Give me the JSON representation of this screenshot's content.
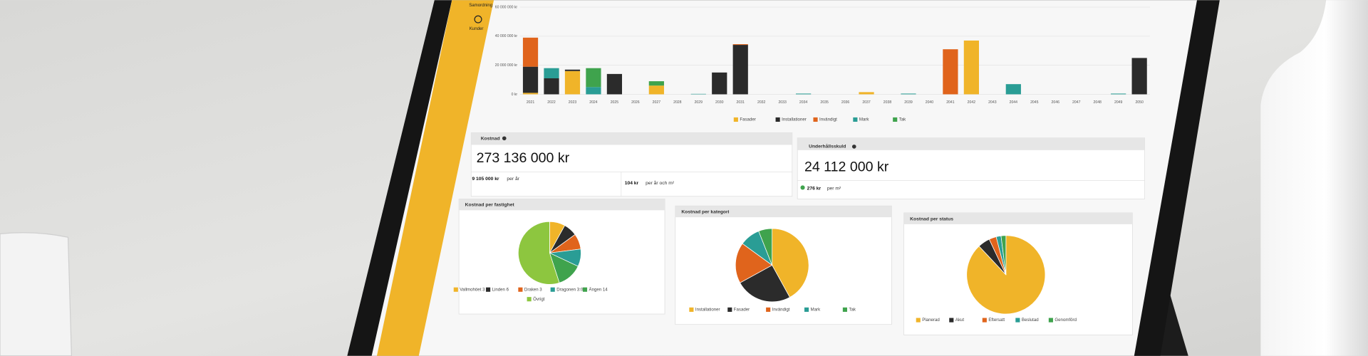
{
  "sidebar": {
    "items": [
      "Samordning",
      "Kunder"
    ]
  },
  "cards": [
    {
      "title": "Kostnad",
      "total": "273 136 000 kr",
      "stats": [
        {
          "value": "9 105 000 kr",
          "unit": "per år"
        },
        {
          "value": "104 kr",
          "unit": "per år och m²"
        }
      ]
    },
    {
      "title": "Underhållsskuld",
      "total": "24 112 000 kr",
      "stats": [
        {
          "value": "276 kr",
          "unit": "per m²"
        }
      ]
    }
  ],
  "chart_data": [
    {
      "type": "bar",
      "stacked": true,
      "categories": [
        "2021",
        "2022",
        "2023",
        "2024",
        "2025",
        "2026",
        "2027",
        "2028",
        "2029",
        "2030",
        "2031",
        "2032",
        "2033",
        "2034",
        "2035",
        "2036",
        "2037",
        "2038",
        "2039",
        "2040",
        "2041",
        "2042",
        "2043",
        "2044",
        "2045",
        "2046",
        "2047",
        "2048",
        "2049",
        "2050"
      ],
      "ylim": [
        0,
        60000000
      ],
      "yticks": [
        {
          "value": 0,
          "label": "0 kr"
        },
        {
          "value": 20000000,
          "label": "20 000 000 kr"
        },
        {
          "value": 40000000,
          "label": "40 000 000 kr"
        },
        {
          "value": 60000000,
          "label": "60 000 000 kr"
        }
      ],
      "grid": true,
      "legend": "bottom",
      "series": [
        {
          "name": "Fasader",
          "color": "#f0b429",
          "values": [
            1000000,
            0,
            16000000,
            0,
            0,
            0,
            6000000,
            0,
            0,
            0,
            0,
            0,
            0,
            0,
            0,
            0,
            1500000,
            0,
            0,
            0,
            0,
            37000000,
            0,
            0,
            0,
            0,
            0,
            0,
            0,
            0
          ]
        },
        {
          "name": "Installationer",
          "color": "#2b2b2b",
          "values": [
            18000000,
            11000000,
            1000000,
            0,
            14000000,
            0,
            0,
            0,
            0,
            15000000,
            34000000,
            0,
            0,
            0,
            0,
            0,
            0,
            0,
            0,
            0,
            0,
            0,
            0,
            0,
            0,
            0,
            0,
            0,
            0,
            25000000
          ]
        },
        {
          "name": "Invändigt",
          "color": "#e0641c",
          "values": [
            20000000,
            0,
            0,
            0,
            0,
            0,
            0,
            0,
            0,
            0,
            500000,
            0,
            0,
            0,
            0,
            0,
            0,
            0,
            0,
            0,
            31000000,
            0,
            0,
            0,
            0,
            0,
            0,
            0,
            0,
            0
          ]
        },
        {
          "name": "Mark",
          "color": "#2a9d95",
          "values": [
            0,
            7000000,
            0,
            5000000,
            0,
            0,
            0,
            0,
            300000,
            0,
            0,
            0,
            0,
            500000,
            0,
            0,
            0,
            0,
            500000,
            0,
            0,
            0,
            0,
            7000000,
            0,
            0,
            0,
            0,
            500000,
            0
          ]
        },
        {
          "name": "Tak",
          "color": "#3fa34d",
          "values": [
            0,
            0,
            0,
            13000000,
            0,
            0,
            3000000,
            0,
            0,
            0,
            0,
            0,
            0,
            0,
            0,
            0,
            0,
            0,
            0,
            0,
            0,
            0,
            0,
            0,
            0,
            0,
            0,
            0,
            0,
            0
          ]
        }
      ]
    },
    {
      "type": "pie",
      "title": "Kostnad per fastighet",
      "categories": [
        "Vallmohöet 3",
        "Linden 6",
        "Draken 3",
        "Dragonen 3:0",
        "Ängen 14",
        "Övrigt"
      ],
      "values": [
        8,
        7,
        8,
        9,
        13,
        55
      ],
      "colors": [
        "#f0b429",
        "#2b2b2b",
        "#e0641c",
        "#2a9d95",
        "#3fa34d",
        "#8dc63f"
      ]
    },
    {
      "type": "pie",
      "title": "Kostnad per kategori",
      "categories": [
        "Installationer",
        "Fasader",
        "Invändigt",
        "Mark",
        "Tak"
      ],
      "values": [
        42,
        25,
        18,
        9,
        6
      ],
      "colors": [
        "#f0b429",
        "#2b2b2b",
        "#e0641c",
        "#2a9d95",
        "#3fa34d"
      ]
    },
    {
      "type": "pie",
      "title": "Kostnad per status",
      "categories": [
        "Planerad",
        "Akut",
        "Eftersatt",
        "Beslutad",
        "Genomförd"
      ],
      "values": [
        88,
        5,
        3,
        2,
        2
      ],
      "colors": [
        "#f0b429",
        "#2b2b2b",
        "#e0641c",
        "#2a9d95",
        "#3fa34d"
      ]
    }
  ]
}
